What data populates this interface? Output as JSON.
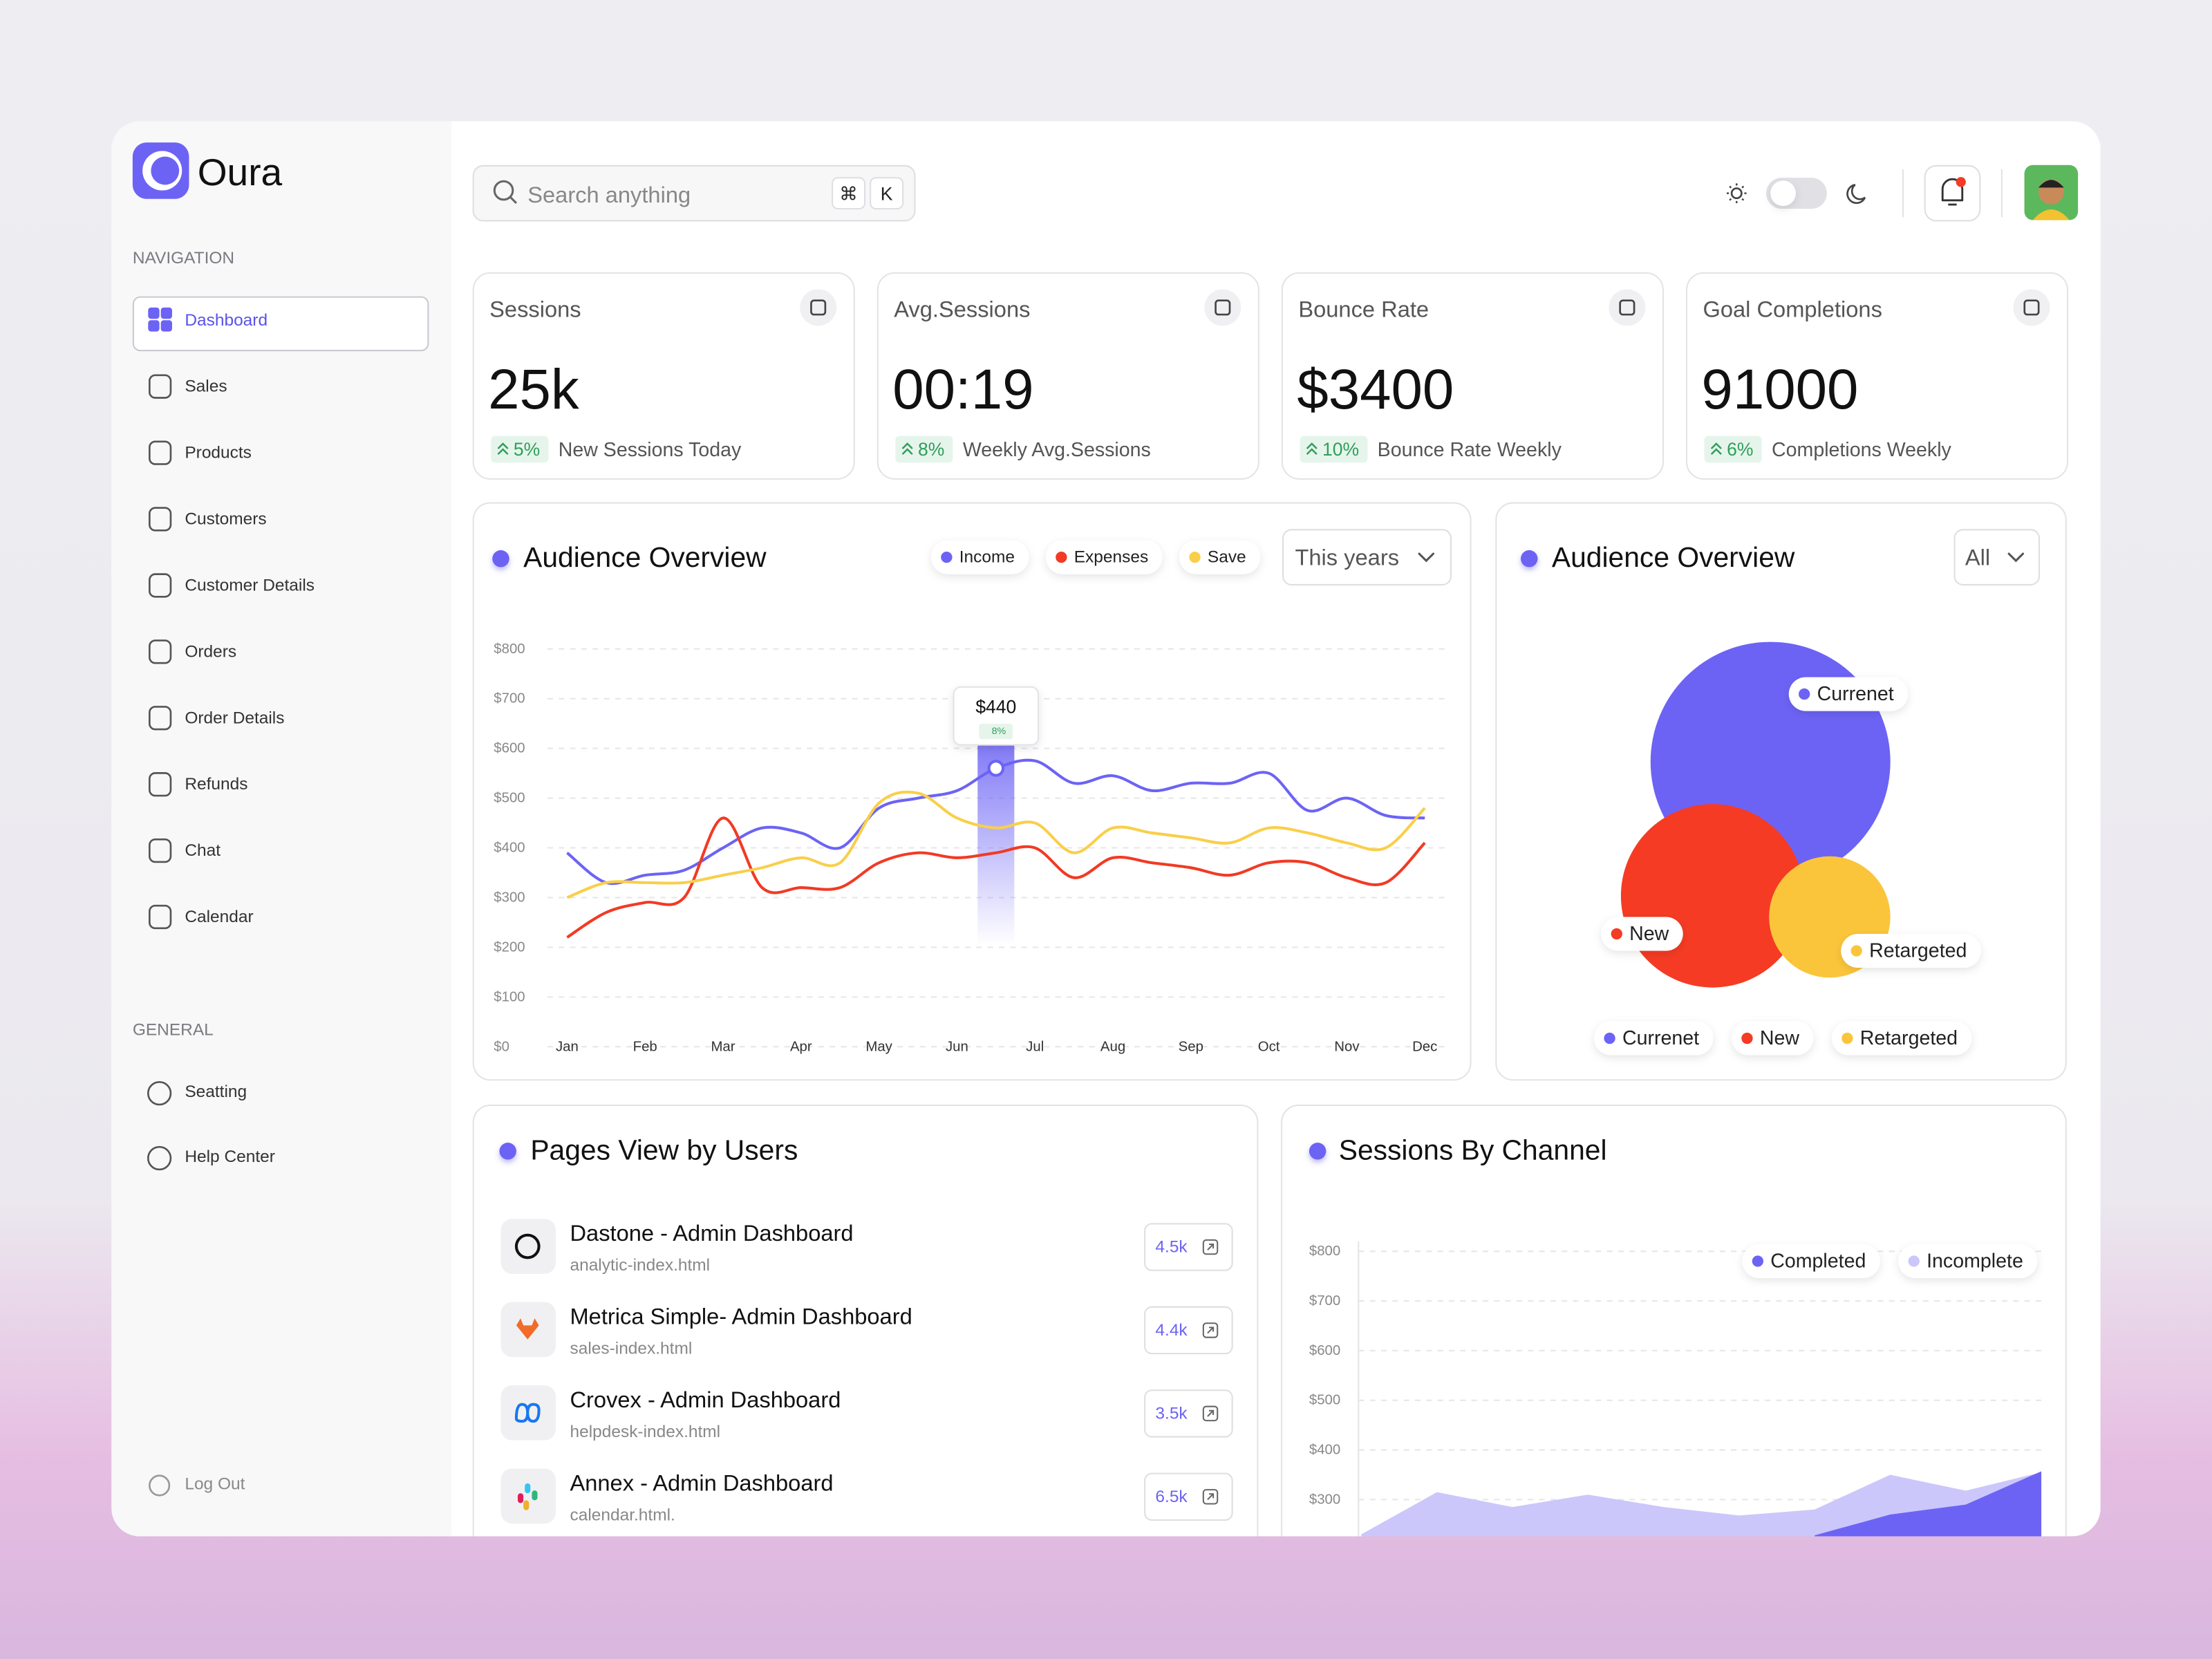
{
  "brand": "Oura",
  "sidebar": {
    "navigation_heading": "NAVIGATION",
    "nav": [
      "Dashboard",
      "Sales",
      "Products",
      "Customers",
      "Customer Details",
      "Orders",
      "Order Details",
      "Refunds",
      "Chat",
      "Calendar"
    ],
    "general_heading": "GENERAL",
    "general": [
      "Seatting",
      "Help Center"
    ],
    "logout": "Log Out"
  },
  "header": {
    "search_placeholder": "Search anything",
    "shortcut": [
      "⌘",
      "K"
    ]
  },
  "stats": [
    {
      "title": "Sessions",
      "value": "25k",
      "change": "5%",
      "note": "New Sessions Today"
    },
    {
      "title": "Avg.Sessions",
      "value": "00:19",
      "change": "8%",
      "note": "Weekly Avg.Sessions"
    },
    {
      "title": "Bounce Rate",
      "value": "$3400",
      "change": "10%",
      "note": "Bounce Rate Weekly"
    },
    {
      "title": "Goal Completions",
      "value": "91000",
      "change": "6%",
      "note": "Completions Weekly"
    }
  ],
  "chart_data": [
    {
      "type": "line",
      "title": "Audience Overview",
      "filter": "This years",
      "categories": [
        "Jan",
        null,
        "Feb",
        null,
        "Mar",
        null,
        "Apr",
        null,
        "May",
        null,
        "Jun",
        null,
        "Jul",
        null,
        "Aug",
        null,
        "Sep",
        null,
        "Oct",
        null,
        "Nov",
        null,
        "Dec"
      ],
      "ylim": [
        0,
        800
      ],
      "yticks": [
        {
          "value": 0,
          "label": "$0"
        },
        {
          "value": 100,
          "label": "$100"
        },
        {
          "value": 200,
          "label": "$200"
        },
        {
          "value": 300,
          "label": "$300"
        },
        {
          "value": 400,
          "label": "$400"
        },
        {
          "value": 500,
          "label": "$500"
        },
        {
          "value": 600,
          "label": "$600"
        },
        {
          "value": 700,
          "label": "$700"
        },
        {
          "value": 800,
          "label": "$800"
        }
      ],
      "grid": true,
      "series": [
        {
          "name": "Income",
          "color": "#6c63f5",
          "values": [
            390,
            330,
            345,
            355,
            400,
            440,
            430,
            400,
            480,
            500,
            515,
            560,
            575,
            530,
            545,
            515,
            530,
            530,
            550,
            475,
            500,
            465,
            460
          ]
        },
        {
          "name": "Expenses",
          "color": "#f23a24",
          "values": [
            220,
            270,
            290,
            300,
            460,
            320,
            320,
            320,
            370,
            390,
            380,
            390,
            400,
            340,
            380,
            370,
            360,
            345,
            370,
            370,
            340,
            330,
            410
          ]
        },
        {
          "name": "Save",
          "color": "#f9cf4a",
          "values": [
            300,
            330,
            330,
            330,
            345,
            360,
            380,
            370,
            490,
            510,
            460,
            440,
            450,
            390,
            440,
            430,
            420,
            410,
            440,
            430,
            410,
            400,
            480
          ]
        }
      ],
      "tooltip": {
        "label": "$440",
        "change": "8%"
      }
    },
    {
      "type": "bubble",
      "title": "Audience Overview",
      "filter": "All",
      "series": [
        {
          "name": "Currenet",
          "color": "#6c63f5"
        },
        {
          "name": "New",
          "color": "#f53b24"
        },
        {
          "name": "Retargeted",
          "color": "#fbc53b"
        }
      ]
    },
    {
      "type": "area",
      "title": "Sessions By Channel",
      "categories": [
        null,
        null,
        null,
        null,
        null,
        null,
        null,
        null,
        null,
        null
      ],
      "ylim": [
        0,
        800
      ],
      "yticks": [
        {
          "value": 300,
          "label": "$300"
        },
        {
          "value": 400,
          "label": "$400"
        },
        {
          "value": 500,
          "label": "$500"
        },
        {
          "value": 600,
          "label": "$600"
        },
        {
          "value": 700,
          "label": "$700"
        },
        {
          "value": 800,
          "label": "$800"
        }
      ],
      "grid": true,
      "series": [
        {
          "name": "Completed",
          "color": "#6c63f5",
          "values": [
            null,
            null,
            null,
            null,
            null,
            null,
            228,
            270,
            290,
            357
          ]
        },
        {
          "name": "Incomplete",
          "color": "#cbc7fb",
          "values": [
            230,
            315,
            285,
            310,
            285,
            268,
            280,
            350,
            318,
            355
          ]
        }
      ]
    }
  ],
  "pages_view": {
    "title": "Pages View by Users",
    "items": [
      {
        "name": "Dastone - Admin Dashboard",
        "file": "analytic-index.html",
        "count": "4.5k"
      },
      {
        "name": "Metrica Simple- Admin Dashboard",
        "file": "sales-index.html",
        "count": "4.4k"
      },
      {
        "name": "Crovex - Admin Dashboard",
        "file": "helpdesk-index.html",
        "count": "3.5k"
      },
      {
        "name": "Annex - Admin Dashboard",
        "file": "calendar.html.",
        "count": "6.5k"
      }
    ]
  }
}
